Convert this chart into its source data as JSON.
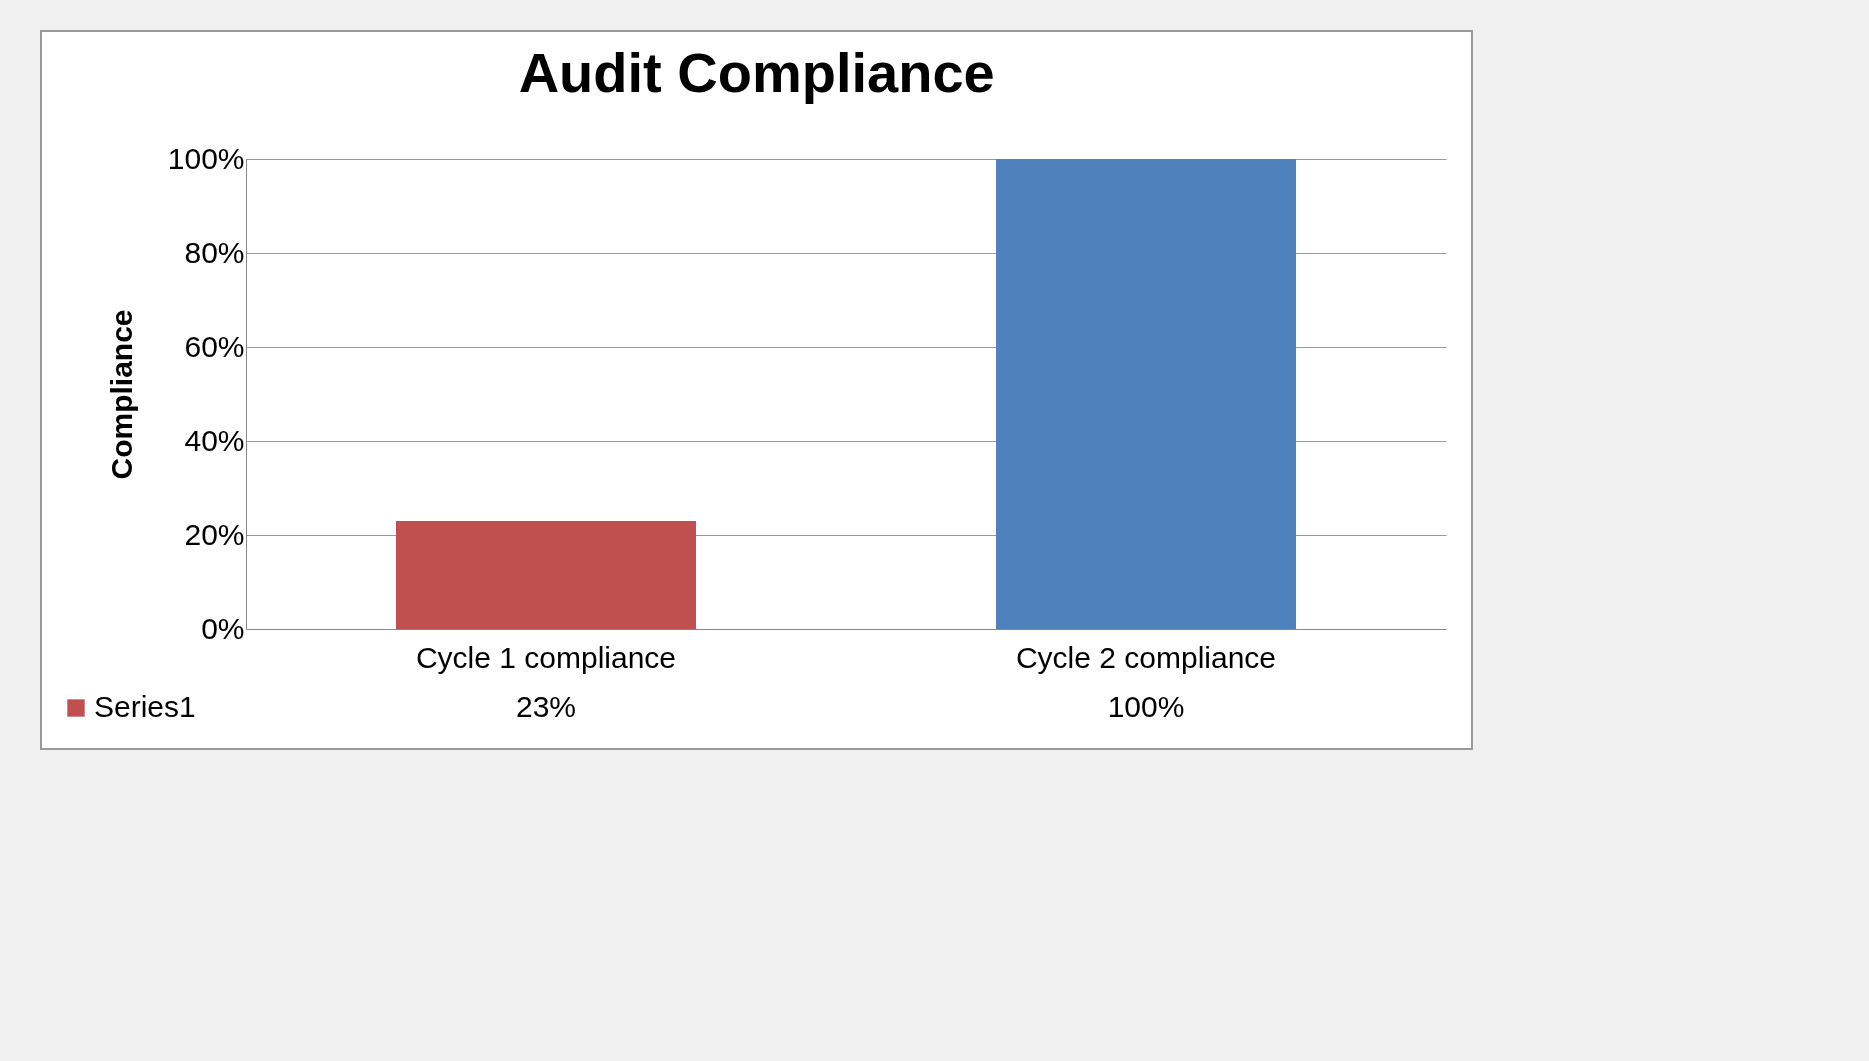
{
  "chart_data": {
    "type": "bar",
    "title": "Audit Compliance",
    "ylabel": "Compliance",
    "categories": [
      "Cycle 1 compliance",
      "Cycle 2 compliance"
    ],
    "series": [
      {
        "name": "Series1",
        "color": "#c0504d",
        "colors": [
          "#c0504d",
          "#4f81bd"
        ],
        "values": [
          23,
          100
        ],
        "value_labels": [
          "23%",
          "100%"
        ]
      }
    ],
    "ylim": [
      0,
      100
    ],
    "yticks": [
      {
        "value": 0,
        "label": "0%"
      },
      {
        "value": 20,
        "label": "20%"
      },
      {
        "value": 40,
        "label": "40%"
      },
      {
        "value": 60,
        "label": "60%"
      },
      {
        "value": 80,
        "label": "80%"
      },
      {
        "value": 100,
        "label": "100%"
      }
    ],
    "grid": true,
    "legend": "bottom left"
  }
}
